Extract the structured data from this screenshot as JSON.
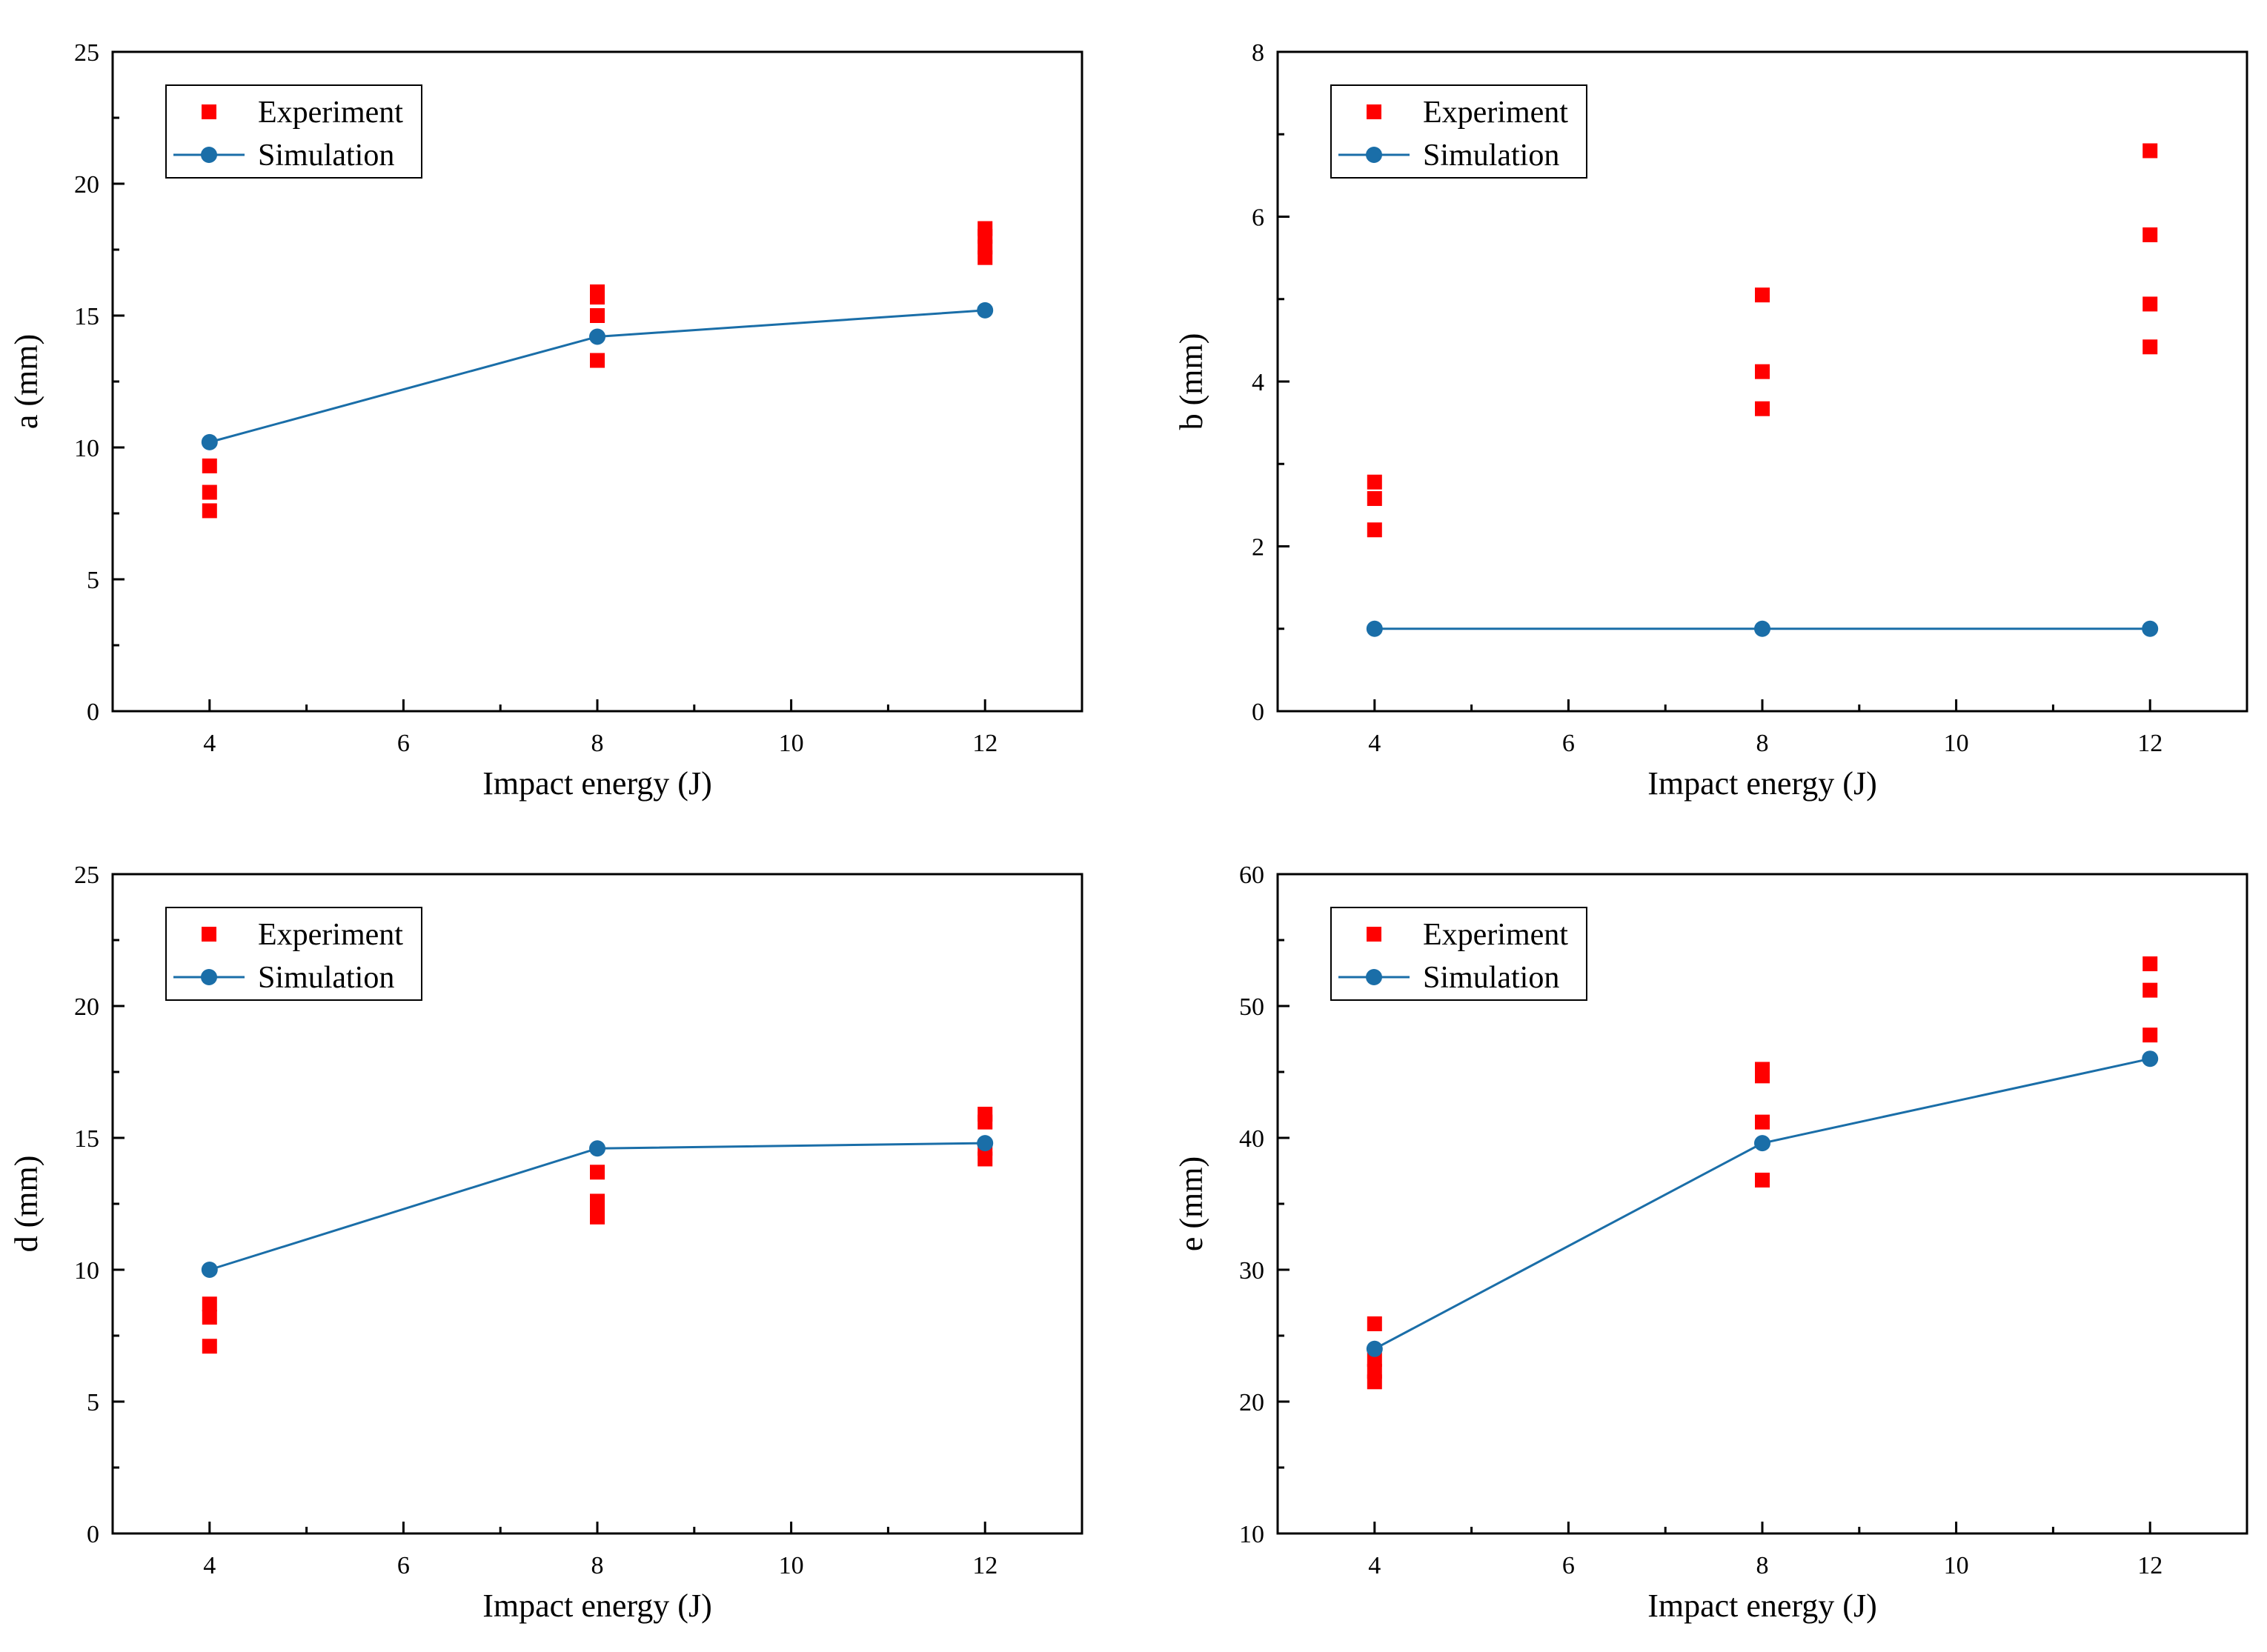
{
  "colors": {
    "experiment": "#ff0000",
    "simulation": "#1a6ea8",
    "axes": "#000000"
  },
  "chart_data": [
    {
      "type": "scatter",
      "panel": "top-left",
      "xlabel": "Impact energy (J)",
      "ylabel": "a (mm)",
      "xlim": [
        3,
        13
      ],
      "ylim": [
        0,
        25
      ],
      "xticks": [
        4,
        6,
        8,
        10,
        12
      ],
      "yticks": [
        0,
        5,
        10,
        15,
        20,
        25
      ],
      "legend_position": "top-left",
      "series": [
        {
          "name": "Experiment",
          "type": "scatter",
          "marker": "square",
          "x": [
            4,
            4,
            4,
            8,
            8,
            8,
            8,
            12,
            12,
            12,
            12
          ],
          "y": [
            7.6,
            8.3,
            9.3,
            13.3,
            15.0,
            15.7,
            15.9,
            17.2,
            17.6,
            18.0,
            18.3
          ]
        },
        {
          "name": "Simulation",
          "type": "line",
          "marker": "circle",
          "x": [
            4,
            8,
            12
          ],
          "y": [
            10.2,
            14.2,
            15.2
          ]
        }
      ]
    },
    {
      "type": "scatter",
      "panel": "top-right",
      "xlabel": "Impact energy (J)",
      "ylabel": "b (mm)",
      "xlim": [
        3,
        13
      ],
      "ylim": [
        0,
        8
      ],
      "xticks": [
        4,
        6,
        8,
        10,
        12
      ],
      "yticks": [
        0,
        2,
        4,
        6,
        8
      ],
      "legend_position": "top-left",
      "series": [
        {
          "name": "Experiment",
          "type": "scatter",
          "marker": "square",
          "x": [
            4,
            4,
            4,
            8,
            8,
            8,
            12,
            12,
            12,
            12
          ],
          "y": [
            2.2,
            2.58,
            2.78,
            3.67,
            4.12,
            5.05,
            4.42,
            4.94,
            5.78,
            6.8
          ]
        },
        {
          "name": "Simulation",
          "type": "line",
          "marker": "circle",
          "x": [
            4,
            8,
            12
          ],
          "y": [
            1.0,
            1.0,
            1.0
          ]
        }
      ]
    },
    {
      "type": "scatter",
      "panel": "bottom-left",
      "xlabel": "Impact energy (J)",
      "ylabel": "d (mm)",
      "xlim": [
        3,
        13
      ],
      "ylim": [
        0,
        25
      ],
      "xticks": [
        4,
        6,
        8,
        10,
        12
      ],
      "yticks": [
        0,
        5,
        10,
        15,
        20,
        25
      ],
      "legend_position": "top-left",
      "series": [
        {
          "name": "Experiment",
          "type": "scatter",
          "marker": "square",
          "x": [
            4,
            4,
            4,
            8,
            8,
            8,
            8,
            12,
            12,
            12,
            12
          ],
          "y": [
            7.1,
            8.2,
            8.7,
            12.0,
            12.3,
            12.6,
            13.7,
            14.2,
            14.6,
            15.6,
            15.9
          ]
        },
        {
          "name": "Simulation",
          "type": "line",
          "marker": "circle",
          "x": [
            4,
            8,
            12
          ],
          "y": [
            10.0,
            14.6,
            14.8
          ]
        }
      ]
    },
    {
      "type": "scatter",
      "panel": "bottom-right",
      "xlabel": "Impact energy (J)",
      "ylabel": "e (mm)",
      "xlim": [
        3,
        13
      ],
      "ylim": [
        10,
        60
      ],
      "xticks": [
        4,
        6,
        8,
        10,
        12
      ],
      "yticks": [
        10,
        20,
        30,
        40,
        50,
        60
      ],
      "legend_position": "top-left",
      "series": [
        {
          "name": "Experiment",
          "type": "scatter",
          "marker": "square",
          "x": [
            4,
            4,
            4,
            4,
            8,
            8,
            8,
            8,
            12,
            12,
            12
          ],
          "y": [
            21.5,
            22.3,
            23.2,
            25.9,
            36.8,
            41.2,
            44.7,
            45.2,
            47.8,
            51.2,
            53.2
          ]
        },
        {
          "name": "Simulation",
          "type": "line",
          "marker": "circle",
          "x": [
            4,
            8,
            12
          ],
          "y": [
            24.0,
            39.6,
            46.0
          ]
        }
      ]
    }
  ]
}
